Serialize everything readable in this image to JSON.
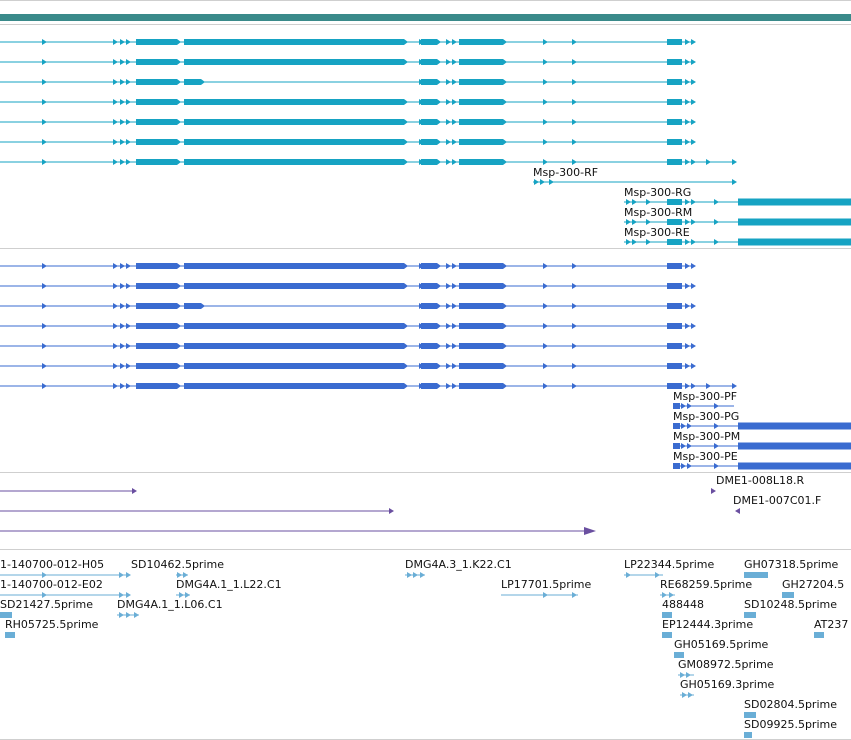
{
  "colors": {
    "header_bar": "#3a8a8a",
    "track_transcripts_a": "#16a3c3",
    "track_transcripts_b": "#3a6bd0",
    "track_purple": "#6a4fa0",
    "track_ests": "#6aaed6",
    "divider": "#cfcfcf"
  },
  "track_a": {
    "labels": [
      "Msp-300-RF",
      "Msp-300-RG",
      "Msp-300-RM",
      "Msp-300-RE"
    ]
  },
  "track_b": {
    "labels": [
      "Msp-300-PF",
      "Msp-300-PG",
      "Msp-300-PM",
      "Msp-300-PE"
    ]
  },
  "track_purple": {
    "labels": [
      "DME1-008L18.R",
      "DME1-007C01.F"
    ]
  },
  "track_ests": {
    "labels": [
      "1-140700-012-H05",
      "SD10462.5prime",
      "DMG4A.3_1.K22.C1",
      "LP22344.5prime",
      "GH07318.5prime",
      "1-140700-012-E02",
      "DMG4A.1_1.L22.C1",
      "LP17701.5prime",
      "RE68259.5prime",
      "GH27204.5",
      "SD21427.5prime",
      "DMG4A.1_1.L06.C1",
      "488448",
      "SD10248.5prime",
      "RH05725.5prime",
      "EP12444.3prime",
      "AT237",
      "GH05169.5prime",
      "GM08972.5prime",
      "GH05169.3prime",
      "SD02804.5prime",
      "SD09925.5prime"
    ]
  }
}
